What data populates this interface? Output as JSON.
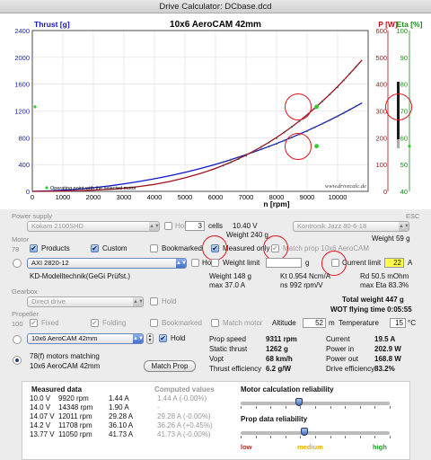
{
  "window": {
    "title": "Drive Calculator: DCbase.dcd"
  },
  "chart_data": {
    "type": "line",
    "title": "10x6 AeroCAM 42mm",
    "xlabel": "n [rpm]",
    "ylabel_left": "Thrust [g]",
    "ylabel_right1": "P [W]",
    "ylabel_right2": "Eta [%]",
    "xlim": [
      0,
      11000
    ],
    "ylim_left": [
      0,
      2400
    ],
    "ylim_right1": [
      0,
      600
    ],
    "ylim_right2": [
      40,
      100
    ],
    "x_ticks": [
      "0",
      "1000",
      "2000",
      "3000",
      "4000",
      "5000",
      "6000",
      "7000",
      "8000",
      "9000",
      "10000"
    ],
    "y_ticks_left": [
      "0",
      "400",
      "800",
      "1200",
      "1600",
      "2000",
      "2400"
    ],
    "y_ticks_right1": [
      "0",
      "100",
      "200",
      "300",
      "400",
      "500",
      "600"
    ],
    "y_ticks_right2": [
      "40",
      "50",
      "60",
      "70",
      "80",
      "90",
      "100"
    ],
    "grid": true,
    "series": [
      {
        "color": "#1018c8",
        "x": [
          0,
          1000,
          2000,
          3000,
          4000,
          5000,
          6000,
          7000,
          8000,
          9000,
          10000,
          10800
        ],
        "y_left": [
          0,
          14,
          52,
          110,
          185,
          280,
          400,
          545,
          710,
          900,
          1120,
          1320
        ]
      },
      {
        "color": "#9e1018",
        "x": [
          0,
          1000,
          2000,
          3000,
          4000,
          5000,
          6000,
          7000,
          8000,
          9000,
          10000,
          10800
        ],
        "y_right1": [
          0,
          1,
          4,
          11,
          25,
          49,
          84,
          133,
          199,
          283,
          389,
          490
        ]
      }
    ],
    "operating_point": {
      "rpm": 9311,
      "thrust_g": 1262,
      "power_w": 168.8
    },
    "legend_text": "Operating point with the selected motor",
    "watermark": "www.drivecalc.de"
  },
  "power_supply": {
    "section_label": "Power supply",
    "battery": "Kokam 2100SHD",
    "hold_label": "Hold",
    "cells_value": "3",
    "cells_label": "cells",
    "voltage": "10.40 V",
    "weight": "Weight 240 g"
  },
  "esc": {
    "section_label": "ESC",
    "name": "Kontronik Jazz 80-6-18",
    "weight": "Weight 59 g"
  },
  "motor": {
    "section_label": "Motor",
    "count": "78",
    "products_label": "Products",
    "custom_label": "Custom",
    "bookmarked_label": "Bookmarked",
    "measured_only_label": "Measured only",
    "match_prop_label": "Match prop 10x6 AeroCAM",
    "selected": "AXI 2820-12",
    "weight_limit_label": "Weight limit",
    "weight_limit_unit": "g",
    "current_limit_label": "Current limit",
    "current_limit_value": "22",
    "current_limit_unit": "A",
    "maker": "KD-Modelltechnik(GeGi Prüfst.)",
    "weight": "Weight 148 g",
    "max_current": "max 37.0 A",
    "kt": "Kt 0.954 Ncm/A",
    "ns": "ns 992 rpm/V",
    "rd": "Rd 50.5 mOhm",
    "max_eta": "max Eta 83.3%"
  },
  "gearbox": {
    "section_label": "Gearbox",
    "selected": "Direct drive",
    "hold_label": "Hold"
  },
  "totals": {
    "total_weight": "Total weight 447 g",
    "flying_time": "WOT flying time 0:05:55"
  },
  "propeller": {
    "section_label": "Propeller",
    "count": "100",
    "fixed_label": "Fixed",
    "folding_label": "Folding",
    "bookmarked_label": "Bookmarked",
    "match_motor_label": "Match motor",
    "altitude_label": "Altitude",
    "altitude_value": "52",
    "altitude_unit": "m",
    "temperature_label": "Temperature",
    "temperature_value": "15",
    "temperature_unit": "°C",
    "selected": "10x6 AeroCAM 42mm",
    "hold_label": "Hold",
    "matching_count": "78(f) motors matching",
    "matching_prop": "10x6 AeroCAM 42mm",
    "match_button": "Match Prop"
  },
  "results": [
    {
      "label": "Prop speed",
      "value": "9311 rpm",
      "label2": "Current",
      "value2": "19.5 A"
    },
    {
      "label": "Static thrust",
      "value": "1262 g",
      "label2": "Power in",
      "value2": "202.9 W"
    },
    {
      "label": "Vopt",
      "value": "68 km/h",
      "label2": "Power out",
      "value2": "168.8 W"
    },
    {
      "label": "Thrust efficiency",
      "value": "6.2 g/W",
      "label2": "Drive efficiency",
      "value2": "83.2%"
    }
  ],
  "measured": {
    "title": "Measured data",
    "computed_title": "Computed values",
    "rows": [
      {
        "v": "10.0 V",
        "rpm": "9920 rpm",
        "a": "1.44 A",
        "c": "1.44 A (-0.00%)"
      },
      {
        "v": "14.0 V",
        "rpm": "14348 rpm",
        "a": "1.90 A",
        "c": "-"
      },
      {
        "v": "14.07 V",
        "rpm": "12011 rpm",
        "a": "29.28 A",
        "c": "29.28 A (-0.00%)"
      },
      {
        "v": "14.2 V",
        "rpm": "11708 rpm",
        "a": "36.10 A",
        "c": "36.26 A (+0.45%)"
      },
      {
        "v": "13.77 V",
        "rpm": "11050 rpm",
        "a": "41.73 A",
        "c": "41.73 A (-0.00%)"
      }
    ]
  },
  "reliability": {
    "motor_label": "Motor calculation reliability",
    "motor_level": 0.39,
    "prop_label": "Prop data reliability",
    "prop_level": 0.43,
    "low": "low",
    "medium": "medium",
    "high": "high",
    "colors": {
      "low": "#d81c1c",
      "medium": "#e0b000",
      "high": "#20a020"
    }
  }
}
